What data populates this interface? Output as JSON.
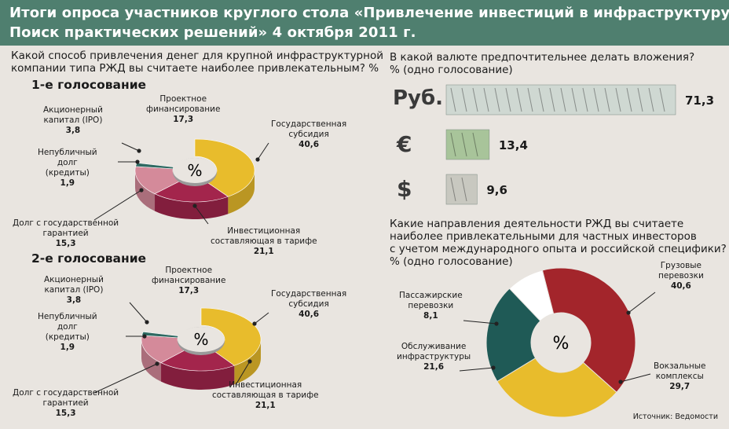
{
  "title_line1": "Итоги опроса участников круглого стола «Привлечение инвестиций в инфраструктуру.",
  "title_line2": "Поиск практических решений» 4 октября 2011 г.",
  "q1_line1": "Какой способ привлечения денег для крупной инфраструктурной",
  "q1_line2": "компании типа РЖД вы считаете наиболее привлекательным? %",
  "q2_line1": "В какой валюте предпочтительнее делать вложения?",
  "q2_line2": "% (одно голосование)",
  "q3_line1": "Какие направления деятельности РЖД вы считаете",
  "q3_line2": "наиболее привлекательными для частных инвесторов",
  "q3_line3": "с учетом международного опыта и российской специфики?",
  "q3_line4": "% (одно голосование)",
  "source": "Источник: Ведомости",
  "pct_symbol": "%",
  "chart_data": [
    {
      "type": "pie",
      "title": "1-е голосование",
      "center_label": "%",
      "slices": [
        {
          "label_lines": [
            "Государственная",
            "субсидия"
          ],
          "value": 40.6,
          "value_text": "40,6",
          "color": "#e8bc2c"
        },
        {
          "label_lines": [
            "Инвестиционная",
            "составляющая в тарифе"
          ],
          "value": 21.1,
          "value_text": "21,1",
          "color": "#a3254c"
        },
        {
          "label_lines": [
            "Долг с государственной",
            "гарантией"
          ],
          "value": 15.3,
          "value_text": "15,3",
          "color": "#d48a9a"
        },
        {
          "label_lines": [
            "Непубличный",
            "долг",
            "(кредиты)"
          ],
          "value": 1.9,
          "value_text": "1,9",
          "color": "#2e6a62"
        },
        {
          "label_lines": [
            "Акционерный",
            "капитал (IPO)"
          ],
          "value": 3.8,
          "value_text": "3,8",
          "color": "#e9e5e0"
        },
        {
          "label_lines": [
            "Проектное",
            "финансирование"
          ],
          "value": 17.3,
          "value_text": "17,3",
          "color": "#e9e5e0"
        }
      ]
    },
    {
      "type": "pie",
      "title": "2-е голосование",
      "center_label": "%",
      "slices": [
        {
          "label_lines": [
            "Государственная",
            "субсидия"
          ],
          "value": 40.6,
          "value_text": "40,6",
          "color": "#e8bc2c"
        },
        {
          "label_lines": [
            "Инвестиционная",
            "составляющая в тарифе"
          ],
          "value": 21.1,
          "value_text": "21,1",
          "color": "#a3254c"
        },
        {
          "label_lines": [
            "Долг с государственной",
            "гарантией"
          ],
          "value": 15.3,
          "value_text": "15,3",
          "color": "#d48a9a"
        },
        {
          "label_lines": [
            "Непубличный",
            "долг",
            "(кредиты)"
          ],
          "value": 1.9,
          "value_text": "1,9",
          "color": "#2e6a62"
        },
        {
          "label_lines": [
            "Акционерный",
            "капитал (IPO)"
          ],
          "value": 3.8,
          "value_text": "3,8",
          "color": "#e9e5e0"
        },
        {
          "label_lines": [
            "Проектное",
            "финансирование"
          ],
          "value": 17.3,
          "value_text": "17,3",
          "color": "#e9e5e0"
        }
      ]
    },
    {
      "type": "bar",
      "orientation": "horizontal",
      "categories": [
        "Руб.",
        "€",
        "$"
      ],
      "values": [
        71.3,
        13.4,
        9.6
      ],
      "value_texts": [
        "71,3",
        "13,4",
        "9,6"
      ],
      "colors": [
        "#cfd8d2",
        "#a8c49a",
        "#c8c8c0"
      ],
      "xlim": [
        0,
        71.3
      ]
    },
    {
      "type": "pie",
      "center_label": "%",
      "slices": [
        {
          "label_lines": [
            "Грузовые",
            "перевозки"
          ],
          "value": 40.6,
          "value_text": "40,6",
          "color": "#a3252b"
        },
        {
          "label_lines": [
            "Вокзальные",
            "комплексы"
          ],
          "value": 29.7,
          "value_text": "29,7",
          "color": "#e8bc2c"
        },
        {
          "label_lines": [
            "Обслуживание",
            "инфраструктуры"
          ],
          "value": 21.6,
          "value_text": "21,6",
          "color": "#1f5a56"
        },
        {
          "label_lines": [
            "Пассажирские",
            "перевозки"
          ],
          "value": 8.1,
          "value_text": "8,1",
          "color": "#ffffff"
        }
      ]
    }
  ]
}
